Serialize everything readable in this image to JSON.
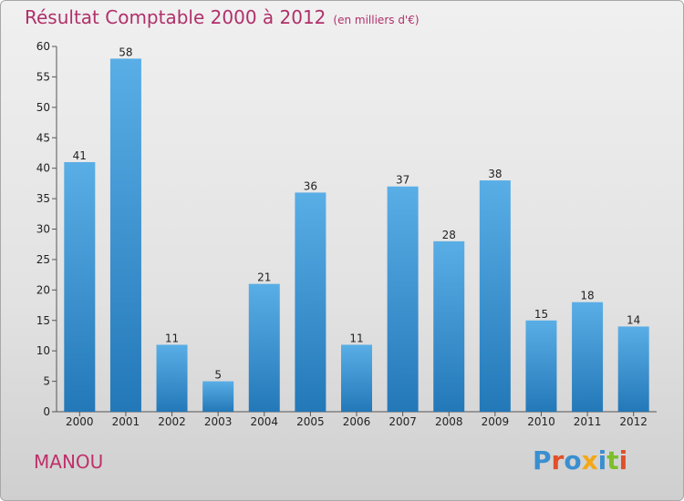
{
  "chart_data": {
    "type": "bar",
    "title": "Résultat Comptable 2000 à 2012",
    "subtitle": "(en milliers d'€)",
    "categories": [
      "2000",
      "2001",
      "2002",
      "2003",
      "2004",
      "2005",
      "2006",
      "2007",
      "2008",
      "2009",
      "2010",
      "2011",
      "2012"
    ],
    "values": [
      41,
      58,
      11,
      5,
      21,
      36,
      11,
      37,
      28,
      38,
      15,
      18,
      14
    ],
    "ylim": [
      0,
      60
    ],
    "yticks": [
      0,
      5,
      10,
      15,
      20,
      25,
      30,
      35,
      40,
      45,
      50,
      55,
      60
    ],
    "xlabel": "",
    "ylabel": "",
    "grid": false
  },
  "footer": {
    "commune": "MANOU",
    "logo_text": "Proxiti"
  },
  "colors": {
    "title": "#b0306a",
    "bar_top": "#5aaee6",
    "bar_bottom": "#2378b8",
    "logo": [
      "#3a8fd0",
      "#e0502a",
      "#3a8fd0",
      "#f2a818",
      "#3a8fd0",
      "#7cbf2a",
      "#e0502a"
    ]
  }
}
